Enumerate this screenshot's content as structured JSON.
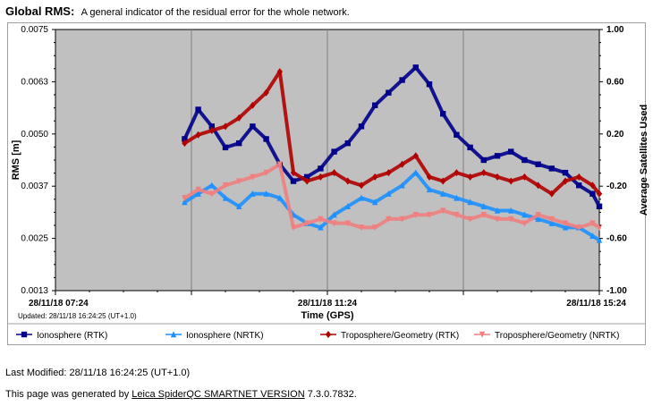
{
  "header": {
    "title": "Global RMS:",
    "description": "A general indicator of the residual error for the whole network."
  },
  "chart_data": {
    "type": "scatter",
    "xlabel": "Time (GPS)",
    "ylabel": "RMS [m]",
    "y2label": "Average Satellites Used",
    "updated": "Updated: 28/11/18 16:24:25 (UT+1.0)",
    "x_ticks": [
      "28/11/18 07:24",
      "28/11/18 11:24",
      "28/11/18 15:24"
    ],
    "y_ticks": [
      "0.0075",
      "0.0063",
      "0.0050",
      "0.0037",
      "0.0025",
      "0.0013"
    ],
    "y2_ticks": [
      "1.00",
      "0.60",
      "0.20",
      "-0.20",
      "-0.60",
      "-1.00"
    ],
    "ylim": [
      0.0013,
      0.0075
    ],
    "y2lim": [
      -1.0,
      1.0
    ],
    "x_hours": [
      7.4,
      15.4
    ],
    "grid": true,
    "legend_position": "bottom",
    "background": "#c0c0c0",
    "series": [
      {
        "name": "Ionosphere (RTK)",
        "color": "#00008b",
        "marker": "square",
        "t": [
          9.3,
          9.5,
          9.7,
          9.9,
          10.1,
          10.3,
          10.5,
          10.7,
          10.9,
          11.1,
          11.3,
          11.5,
          11.7,
          11.9,
          12.1,
          12.3,
          12.5,
          12.7,
          12.9,
          13.1,
          13.3,
          13.5,
          13.7,
          13.9,
          14.1,
          14.3,
          14.5,
          14.7,
          14.9,
          15.1,
          15.3,
          15.4
        ],
        "values": [
          0.0049,
          0.0056,
          0.0052,
          0.0047,
          0.0048,
          0.0052,
          0.0049,
          0.0043,
          0.0039,
          0.004,
          0.0042,
          0.0046,
          0.0048,
          0.0052,
          0.0057,
          0.006,
          0.0063,
          0.0066,
          0.0062,
          0.0055,
          0.005,
          0.0047,
          0.0044,
          0.0045,
          0.0046,
          0.0044,
          0.0043,
          0.0042,
          0.0041,
          0.0038,
          0.0036,
          0.0033
        ]
      },
      {
        "name": "Ionosphere (NRTK)",
        "color": "#1e90ff",
        "marker": "triangle",
        "t": [
          9.3,
          9.5,
          9.7,
          9.9,
          10.1,
          10.3,
          10.5,
          10.7,
          10.9,
          11.1,
          11.3,
          11.5,
          11.7,
          11.9,
          12.1,
          12.3,
          12.5,
          12.7,
          12.9,
          13.1,
          13.3,
          13.5,
          13.7,
          13.9,
          14.1,
          14.3,
          14.5,
          14.7,
          14.9,
          15.1,
          15.3,
          15.4
        ],
        "values": [
          0.0034,
          0.0036,
          0.0038,
          0.0035,
          0.0033,
          0.0036,
          0.0036,
          0.0035,
          0.0031,
          0.0029,
          0.0028,
          0.0031,
          0.0033,
          0.0035,
          0.0034,
          0.0036,
          0.0038,
          0.0041,
          0.0037,
          0.0036,
          0.0035,
          0.0034,
          0.0033,
          0.0032,
          0.0032,
          0.0031,
          0.003,
          0.0029,
          0.0028,
          0.0028,
          0.0026,
          0.0025
        ]
      },
      {
        "name": "Troposphere/Geometry (RTK)",
        "color": "#b00000",
        "marker": "diamond",
        "t": [
          9.3,
          9.5,
          9.7,
          9.9,
          10.1,
          10.3,
          10.5,
          10.7,
          10.9,
          11.1,
          11.3,
          11.5,
          11.7,
          11.9,
          12.1,
          12.3,
          12.5,
          12.7,
          12.9,
          13.1,
          13.3,
          13.5,
          13.7,
          13.9,
          14.1,
          14.3,
          14.5,
          14.7,
          14.9,
          15.1,
          15.3,
          15.4
        ],
        "values": [
          0.0048,
          0.005,
          0.0051,
          0.0052,
          0.0054,
          0.0057,
          0.006,
          0.0065,
          0.0041,
          0.0039,
          0.004,
          0.0041,
          0.0039,
          0.0038,
          0.004,
          0.0041,
          0.0043,
          0.0045,
          0.004,
          0.0039,
          0.0041,
          0.004,
          0.0041,
          0.004,
          0.0039,
          0.004,
          0.0038,
          0.0036,
          0.0039,
          0.004,
          0.0038,
          0.0036
        ]
      },
      {
        "name": "Troposphere/Geometry (NRTK)",
        "color": "#f08080",
        "marker": "triangle-down",
        "t": [
          9.3,
          9.5,
          9.7,
          9.9,
          10.1,
          10.3,
          10.5,
          10.7,
          10.9,
          11.1,
          11.3,
          11.5,
          11.7,
          11.9,
          12.1,
          12.3,
          12.5,
          12.7,
          12.9,
          13.1,
          13.3,
          13.5,
          13.7,
          13.9,
          14.1,
          14.3,
          14.5,
          14.7,
          14.9,
          15.1,
          15.3,
          15.4
        ],
        "values": [
          0.0035,
          0.0037,
          0.0036,
          0.0038,
          0.0039,
          0.004,
          0.0041,
          0.0043,
          0.0028,
          0.0029,
          0.003,
          0.0029,
          0.0029,
          0.0028,
          0.0028,
          0.003,
          0.003,
          0.0031,
          0.0031,
          0.0032,
          0.0031,
          0.003,
          0.0031,
          0.003,
          0.003,
          0.0029,
          0.0031,
          0.003,
          0.0029,
          0.0028,
          0.0029,
          0.0028
        ]
      }
    ]
  },
  "footer": {
    "last_modified": "Last Modified: 28/11/18 16:24:25 (UT+1.0)",
    "generated_prefix": "This page was generated by",
    "generated_link": "Leica SpiderQC SMARTNET VERSION",
    "generated_suffix": "7.3.0.7832."
  }
}
